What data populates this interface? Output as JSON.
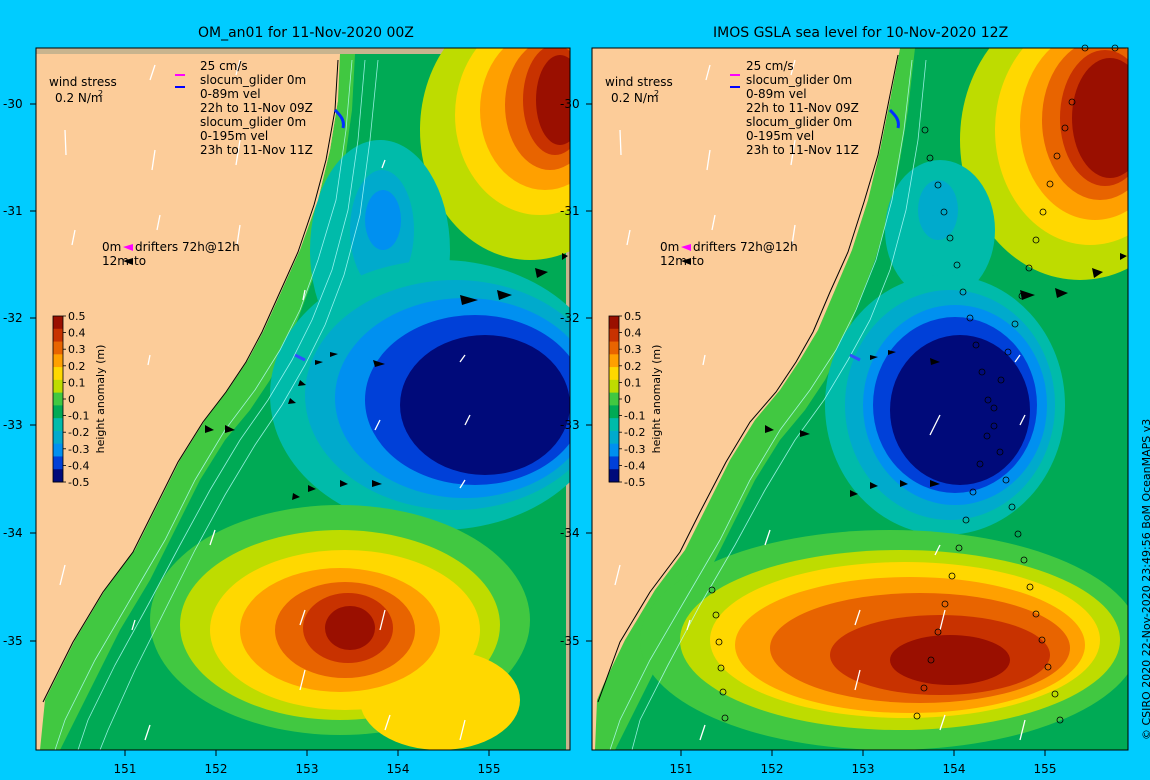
{
  "panels": [
    {
      "title": "OM_an01 for 11-Nov-2020 00Z",
      "velocity_legend": [
        "25 cm/s",
        "slocum_glider 0m",
        "0-89m vel",
        "22h to 11-Nov 09Z",
        "slocum_glider 0m",
        "0-195m vel",
        "23h to 11-Nov 11Z"
      ],
      "wind_legend": [
        "wind stress",
        "0.2 N/m",
        "2"
      ],
      "drifter_legend": [
        "0m",
        "drifters 72h@12h",
        "12m",
        "to"
      ]
    },
    {
      "title": "IMOS GSLA sea level  for 10-Nov-2020 12Z",
      "velocity_legend": [
        "25 cm/s",
        "slocum_glider 0m",
        "0-89m vel",
        "22h to 11-Nov 09Z",
        "slocum_glider 0m",
        "0-195m vel",
        "23h to 11-Nov 11Z"
      ],
      "wind_legend": [
        "wind stress",
        "0.2 N/m",
        "2"
      ],
      "drifter_legend": [
        "0m",
        "drifters 72h@12h",
        "12m",
        "to"
      ]
    }
  ],
  "axes": {
    "lat_ticks": [
      "-30",
      "-31",
      "-32",
      "-33",
      "-34",
      "-35"
    ],
    "lon_ticks": [
      "151",
      "152",
      "153",
      "154",
      "155"
    ]
  },
  "colorbar": {
    "label": "height anomaly (m)",
    "ticks": [
      "0.5",
      "0.4",
      "0.3",
      "0.2",
      "0.1",
      "0",
      "-0.1",
      "-0.2",
      "-0.3",
      "-0.4",
      "-0.5"
    ],
    "colors": [
      "#9a0f00",
      "#c83200",
      "#e86400",
      "#ffa000",
      "#ffd800",
      "#bedc00",
      "#41c841",
      "#00aa55",
      "#00bbaa",
      "#00aacc",
      "#0090f0",
      "#0040d8",
      "#000a7a"
    ]
  },
  "credit": "© CSIRO 2020  22-Nov-2020 23:49:56 BoM OceanMAPS v3",
  "colors": {
    "background": "#00ccff",
    "land": "#fccc99",
    "frame_left": "#c8b48e"
  }
}
